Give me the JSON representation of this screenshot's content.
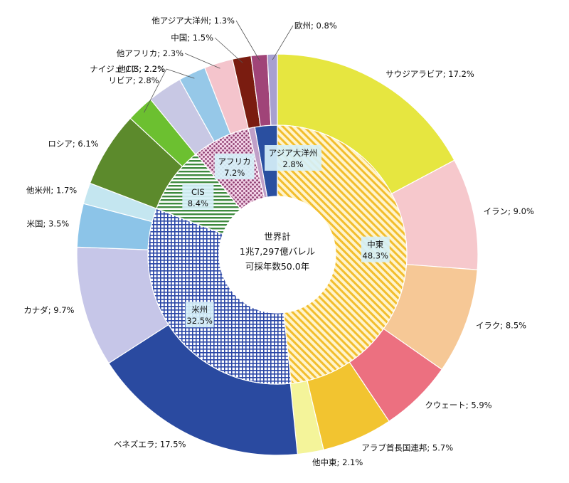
{
  "chart_data": {
    "type": "pie",
    "center": {
      "line1": "世界計",
      "line2": "1兆7,297億バレル",
      "line3": "可採年数50.0年"
    },
    "inner": [
      {
        "label": "アジア大洋州",
        "pct": "2.8%",
        "value": 2.8,
        "color": "#2a4fa0",
        "pattern": "solid",
        "leader": false
      },
      {
        "label": "中東",
        "pct": "48.3%",
        "value": 48.3,
        "color": "#f2be2e",
        "pattern": "hatch",
        "leader": false
      },
      {
        "label": "米州",
        "pct": "32.5%",
        "value": 32.5,
        "color": "#2a46a6",
        "pattern": "grid",
        "leader": false
      },
      {
        "label": "CIS",
        "pct": "8.4%",
        "value": 8.4,
        "color": "#3e8a3e",
        "pattern": "hstripe",
        "leader": false
      },
      {
        "label": "アフリカ",
        "pct": "7.2%",
        "value": 7.2,
        "color": "#8c3a6e",
        "pattern": "dots",
        "leader": false
      },
      {
        "label": "欧州",
        "pct": "0.8%",
        "value": 0.8,
        "color": "#c0a0c8",
        "pattern": "solid",
        "leader": false
      }
    ],
    "outer": [
      {
        "label": "サウジアラビア",
        "pct": "17.2%",
        "value": 17.2,
        "color": "#e6e640"
      },
      {
        "label": "イラン",
        "pct": "9.0%",
        "value": 9.0,
        "color": "#f6c8cc"
      },
      {
        "label": "イラク",
        "pct": "8.5%",
        "value": 8.5,
        "color": "#f6c896"
      },
      {
        "label": "クウェート",
        "pct": "5.9%",
        "value": 5.9,
        "color": "#ec7080"
      },
      {
        "label": "アラブ首長国連邦",
        "pct": "5.7%",
        "value": 5.7,
        "color": "#f2c430"
      },
      {
        "label": "他中東",
        "pct": "2.1%",
        "value": 2.1,
        "color": "#f4f49a"
      },
      {
        "label": "ベネズエラ",
        "pct": "17.5%",
        "value": 17.5,
        "color": "#2a4aa0"
      },
      {
        "label": "カナダ",
        "pct": "9.7%",
        "value": 9.7,
        "color": "#c6c6e8"
      },
      {
        "label": "米国",
        "pct": "3.5%",
        "value": 3.5,
        "color": "#8cc4e8"
      },
      {
        "label": "他米州",
        "pct": "1.7%",
        "value": 1.7,
        "color": "#c4e6f0"
      },
      {
        "label": "ロシア",
        "pct": "6.1%",
        "value": 6.1,
        "color": "#5c8a2c"
      },
      {
        "label": "他CIS",
        "pct": "2.2%",
        "value": 2.2,
        "color": "#6cc030"
      },
      {
        "label": "リビア",
        "pct": "2.8%",
        "value": 2.8,
        "color": "#c8c8e4"
      },
      {
        "label": "ナイジェリア",
        "pct": "2.2%",
        "value": 2.2,
        "color": "#96c8e8"
      },
      {
        "label": "他アフリカ",
        "pct": "2.3%",
        "value": 2.3,
        "color": "#f4c4cc"
      },
      {
        "label": "中国",
        "pct": "1.5%",
        "value": 1.5,
        "color": "#7a1c10"
      },
      {
        "label": "他アジア大洋州",
        "pct": "1.3%",
        "value": 1.3,
        "color": "#a04478"
      },
      {
        "label": "欧州",
        "pct": "0.8%",
        "value": 0.8,
        "color": "#a8a0d0"
      }
    ]
  }
}
